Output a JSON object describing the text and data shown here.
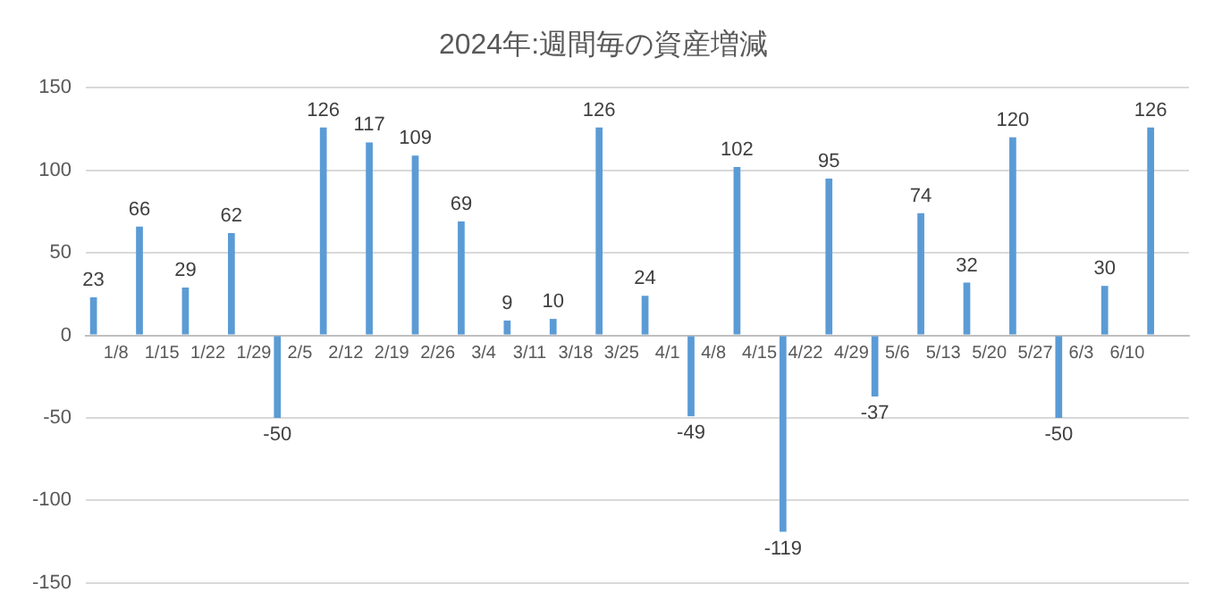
{
  "chart_data": {
    "type": "bar",
    "title": "2024年:週間毎の資産増減",
    "categories": [
      "1/8",
      "1/15",
      "1/22",
      "1/29",
      "2/5",
      "2/12",
      "2/19",
      "2/26",
      "3/4",
      "3/11",
      "3/18",
      "3/25",
      "4/1",
      "4/8",
      "4/15",
      "4/22",
      "4/29",
      "5/6",
      "5/13",
      "5/20",
      "5/27",
      "6/3",
      "6/10",
      null
    ],
    "values": [
      23,
      66,
      29,
      62,
      -50,
      126,
      117,
      109,
      69,
      9,
      10,
      126,
      24,
      -49,
      102,
      -119,
      95,
      -37,
      74,
      32,
      120,
      -50,
      30,
      126
    ],
    "color": "#5b9bd5",
    "ylim": [
      -150,
      150
    ],
    "yticks": [
      -150,
      -100,
      -50,
      0,
      50,
      100,
      150
    ],
    "grid": "y",
    "data_labels": true
  }
}
